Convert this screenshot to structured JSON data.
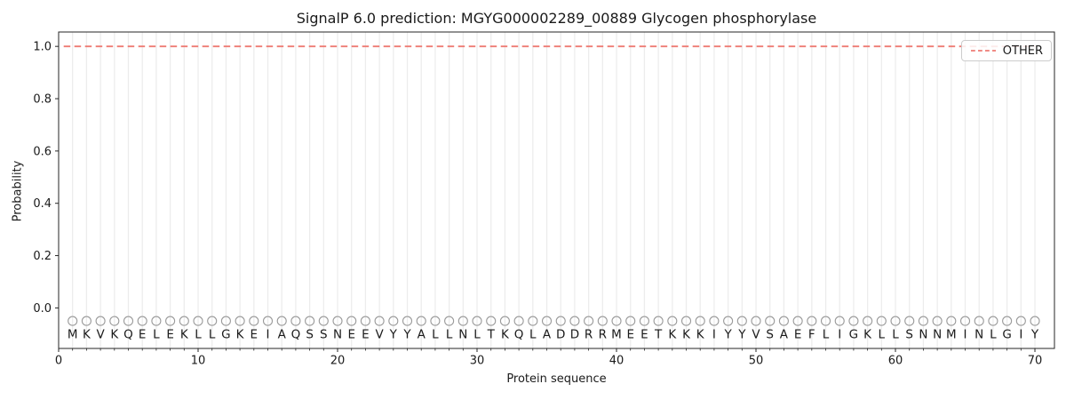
{
  "chart_data": {
    "type": "line",
    "title": "SignalP 6.0 prediction: MGYG000002289_00889 Glycogen phosphorylase",
    "xlabel": "Protein sequence",
    "ylabel": "Probability",
    "xlim": [
      0,
      71.4
    ],
    "ylim": [
      -0.155,
      1.055
    ],
    "x_ticks": [
      0,
      10,
      20,
      30,
      40,
      50,
      60,
      70
    ],
    "x_tick_labels": [
      "0",
      "10",
      "20",
      "30",
      "40",
      "50",
      "60",
      "70"
    ],
    "y_ticks": [
      0.0,
      0.2,
      0.4,
      0.6,
      0.8,
      1.0
    ],
    "y_tick_labels": [
      "0.0",
      "0.2",
      "0.4",
      "0.6",
      "0.8",
      "1.0"
    ],
    "grid": {
      "vertical_line_per_residue": true,
      "color": "#ececec"
    },
    "legend": {
      "position": "upper-right",
      "entries": [
        {
          "label": "OTHER",
          "color": "#ee7b74",
          "linestyle": "dashed"
        }
      ]
    },
    "series": [
      {
        "name": "OTHER",
        "linestyle": "dashed",
        "color": "#ee7b74",
        "x_range": [
          1,
          70
        ],
        "constant_y": 1.0,
        "description": "OTHER probability equals 1.0 at every residue position 1-70"
      }
    ],
    "sequence": {
      "residues": "MKVKQELEKLLGKEIAQSSNEEVYYALLNLTKQLADDRRMEETKKKIYYVSAEFLIGKLLSNNMINLGIY",
      "length": 70,
      "marker": {
        "symbol": "circle-open",
        "y": -0.05,
        "color": "#9a9a9a"
      },
      "letter_y": -0.1,
      "letter_color": "#1a1a1a"
    },
    "axis_color": "#262626"
  }
}
